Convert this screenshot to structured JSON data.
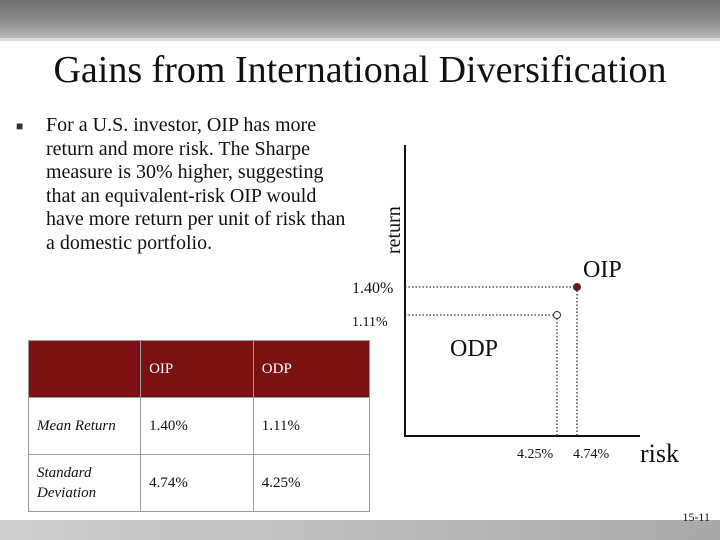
{
  "slide": {
    "title": "Gains from International Diversification",
    "bullet": "For a U.S. investor, OIP has more return and more risk. The Sharpe measure is 30% higher, suggesting that an equivalent-risk OIP would have more return per unit of risk than a domestic portfolio.",
    "slide_number": "15-11"
  },
  "graph": {
    "y_axis_label": "return",
    "x_axis_label": "risk",
    "y_tick_oip": "1.40%",
    "y_tick_odp": "1.11%",
    "x_tick_odp": "4.25%",
    "x_tick_oip": "4.74%",
    "point_oip_label": "OIP",
    "point_odp_label": "ODP"
  },
  "chart_data": {
    "type": "scatter",
    "title": "",
    "xlabel": "risk",
    "ylabel": "return",
    "series": [
      {
        "name": "OIP",
        "x": 4.74,
        "y": 1.4
      },
      {
        "name": "ODP",
        "x": 4.25,
        "y": 1.11
      }
    ]
  },
  "table": {
    "headers": [
      "",
      "OIP",
      "ODP"
    ],
    "rows": [
      {
        "label": "Mean Return",
        "oip": "1.40%",
        "odp": "1.11%"
      },
      {
        "label": "Standard Deviation",
        "oip": "4.74%",
        "odp": "4.25%"
      }
    ]
  },
  "colors": {
    "header_fill": "#7a1113",
    "marker_oip": "#7a1113",
    "marker_odp": "#ffffff"
  }
}
